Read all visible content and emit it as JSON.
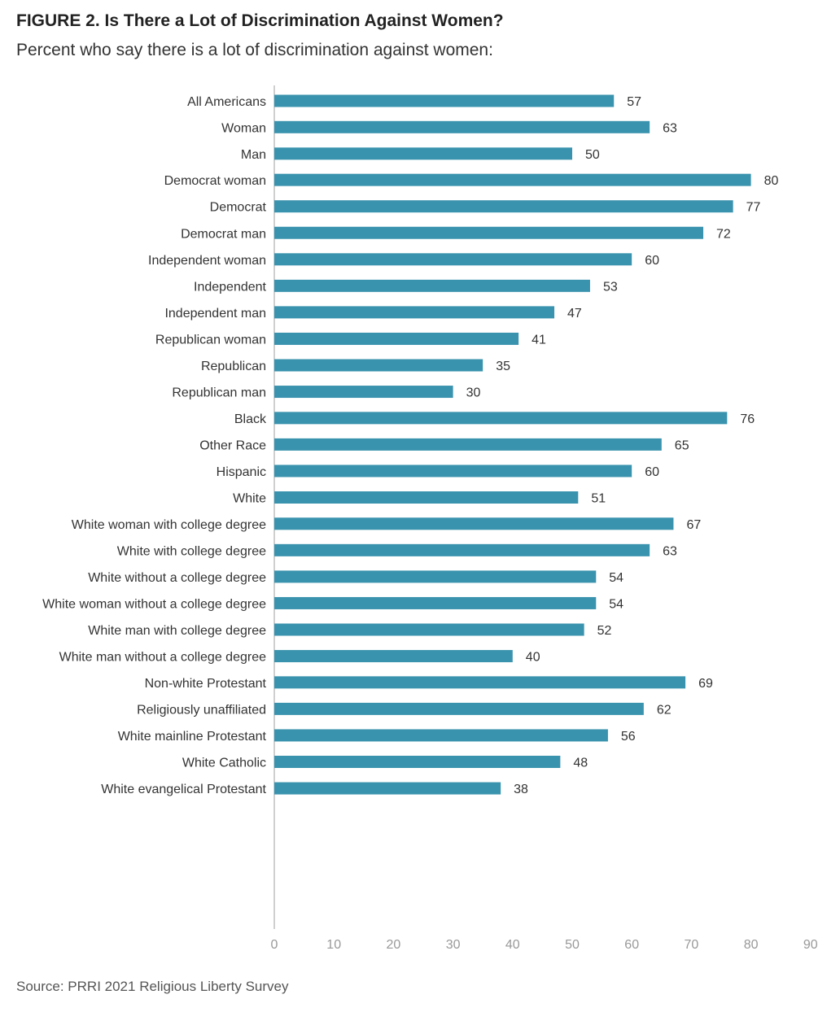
{
  "header": {
    "title": "FIGURE 2.  Is There a Lot of Discrimination Against Women?",
    "subtitle": "Percent who say there is a lot of discrimination against women:"
  },
  "footer": {
    "source": "Source: PRRI 2021 Religious Liberty Survey"
  },
  "colors": {
    "bar": "#3a93ae",
    "axis": "#cfcfcf"
  },
  "chart_data": {
    "type": "bar",
    "orientation": "horizontal",
    "title": "Is There a Lot of Discrimination Against Women?",
    "xlabel": "",
    "ylabel": "",
    "xlim": [
      0,
      90
    ],
    "ticks": [
      0,
      10,
      20,
      30,
      40,
      50,
      60,
      70,
      80,
      90
    ],
    "grid": false,
    "groups": [
      {
        "items": [
          {
            "label": "All Americans",
            "value": 57
          }
        ]
      },
      {
        "items": [
          {
            "label": "Woman",
            "value": 63
          },
          {
            "label": "Man",
            "value": 50
          }
        ]
      },
      {
        "items": [
          {
            "label": "Democrat woman",
            "value": 80
          },
          {
            "label": "Democrat",
            "value": 77
          },
          {
            "label": "Democrat man",
            "value": 72
          },
          {
            "label": "Independent woman",
            "value": 60
          },
          {
            "label": "Independent",
            "value": 53
          },
          {
            "label": "Independent man",
            "value": 47
          },
          {
            "label": "Republican woman",
            "value": 41
          },
          {
            "label": "Republican",
            "value": 35
          },
          {
            "label": "Republican man",
            "value": 30
          }
        ]
      },
      {
        "items": [
          {
            "label": "Black",
            "value": 76
          },
          {
            "label": "Other Race",
            "value": 65
          },
          {
            "label": "Hispanic",
            "value": 60
          },
          {
            "label": "White",
            "value": 51
          }
        ]
      },
      {
        "items": [
          {
            "label": "White woman with college degree",
            "value": 67
          },
          {
            "label": "White with college degree",
            "value": 63
          },
          {
            "label": "White without a college degree",
            "value": 54
          },
          {
            "label": "White woman without a college degree",
            "value": 54
          },
          {
            "label": "White man with college degree",
            "value": 52
          },
          {
            "label": "White man without a college degree",
            "value": 40
          }
        ]
      },
      {
        "items": [
          {
            "label": "Non-white Protestant",
            "value": 69
          },
          {
            "label": "Religiously unaffiliated",
            "value": 62
          },
          {
            "label": "White mainline Protestant",
            "value": 56
          },
          {
            "label": "White Catholic",
            "value": 48
          },
          {
            "label": "White evangelical Protestant",
            "value": 38
          }
        ]
      }
    ]
  }
}
